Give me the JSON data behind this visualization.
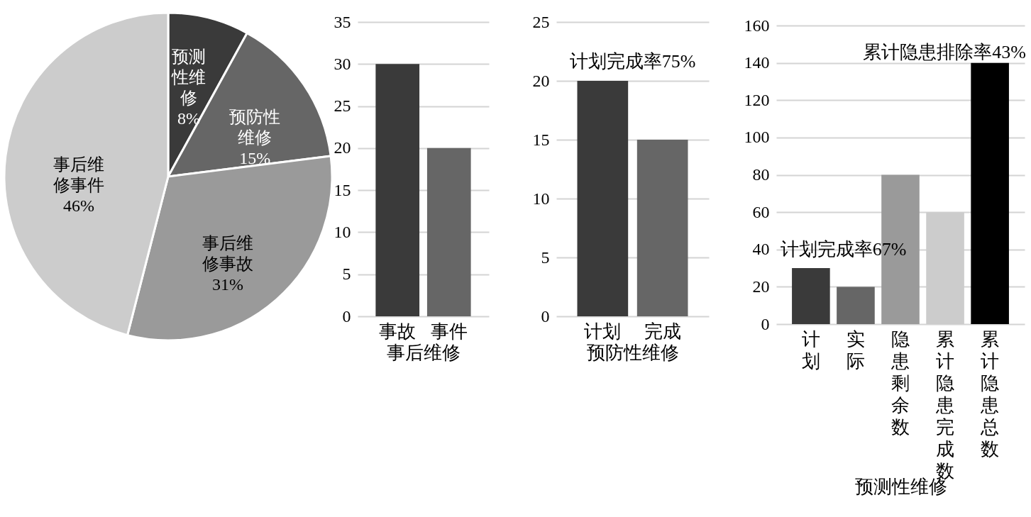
{
  "chart_data": [
    {
      "type": "pie",
      "categories": [
        "预测性维修",
        "预防性维修",
        "事后维修事故",
        "事后维修事件"
      ],
      "values": [
        8,
        15,
        31,
        46
      ],
      "colors": [
        "#3a3a3a",
        "#666666",
        "#9a9a9a",
        "#cccccc"
      ],
      "value_labels": [
        "8%",
        "15%",
        "31%",
        "46%"
      ]
    },
    {
      "type": "bar",
      "categories": [
        "事故",
        "事件"
      ],
      "values": [
        30,
        20
      ],
      "colors": [
        "#3a3a3a",
        "#666666"
      ],
      "xlabel": "事后维修",
      "ylim": [
        0,
        35
      ],
      "yticks": [
        0,
        5,
        10,
        15,
        20,
        25,
        30,
        35
      ],
      "grid": "y"
    },
    {
      "type": "bar",
      "categories": [
        "计划",
        "完成"
      ],
      "values": [
        20,
        15
      ],
      "colors": [
        "#3a3a3a",
        "#666666"
      ],
      "xlabel": "预防性维修",
      "ylim": [
        0,
        25
      ],
      "yticks": [
        0,
        5,
        10,
        15,
        20,
        25
      ],
      "grid": "y",
      "annotations": [
        "计划完成率75%"
      ]
    },
    {
      "type": "bar",
      "categories": [
        "计划",
        "实际",
        "隐患剩余数",
        "累计隐患完成数",
        "累计隐患总数"
      ],
      "values": [
        30,
        20,
        80,
        60,
        140
      ],
      "colors": [
        "#3a3a3a",
        "#666666",
        "#9a9a9a",
        "#cccccc",
        "#000000"
      ],
      "xlabel": "预测性维修",
      "ylim": [
        0,
        160
      ],
      "yticks": [
        0,
        20,
        40,
        60,
        80,
        100,
        120,
        140,
        160
      ],
      "grid": "y",
      "annotations": [
        "计划完成率67%",
        "累计隐患排除率43%"
      ]
    }
  ]
}
